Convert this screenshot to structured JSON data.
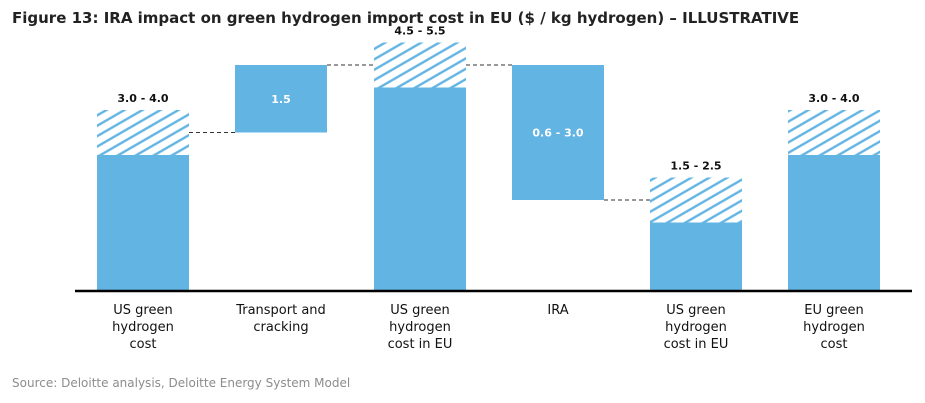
{
  "title": "Figure 13: IRA impact on green hydrogen import cost in EU ($ / kg hydrogen) – ILLUSTRATIVE",
  "source": "Source: Deloitte analysis, Deloitte Energy System Model",
  "colors": {
    "bar": "#62b4e3",
    "hatch": "#62b4e3",
    "axis": "#000000",
    "connector": "#333333",
    "inner_label": "#ffffff",
    "outer_label": "#111111"
  },
  "chart_data": {
    "type": "bar",
    "subtype": "waterfall",
    "categories": [
      [
        "US green",
        "hydrogen",
        "cost"
      ],
      [
        "Transport and",
        "cracking"
      ],
      [
        "US green",
        "hydrogen",
        "cost in EU"
      ],
      [
        "IRA"
      ],
      [
        "US green",
        "hydrogen",
        "cost in EU"
      ],
      [
        "EU green",
        "hydrogen",
        "cost"
      ]
    ],
    "bars": [
      {
        "kind": "total",
        "start": 0,
        "solid_end": 3.0,
        "range_end": 4.0,
        "label": "3.0 - 4.0"
      },
      {
        "kind": "increase",
        "start": 3.5,
        "solid_end": 5.0,
        "range_end": null,
        "label": "1.5"
      },
      {
        "kind": "total",
        "start": 0,
        "solid_end": 4.5,
        "range_end": 5.5,
        "label": "4.5 - 5.5"
      },
      {
        "kind": "decrease",
        "start": 2.0,
        "solid_end": 5.0,
        "range_end": null,
        "label": "0.6 - 3.0"
      },
      {
        "kind": "total",
        "start": 0,
        "solid_end": 1.5,
        "range_end": 2.5,
        "label": "1.5 - 2.5"
      },
      {
        "kind": "total",
        "start": 0,
        "solid_end": 3.0,
        "range_end": 4.0,
        "label": "3.0 - 4.0"
      }
    ],
    "ylim": [
      0,
      5.0
    ],
    "grid": false
  }
}
